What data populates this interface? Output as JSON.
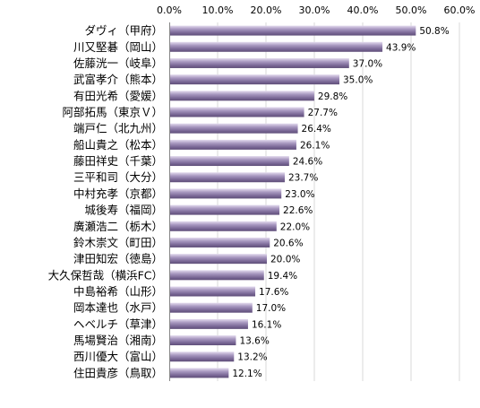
{
  "chart_data": {
    "type": "bar",
    "orientation": "horizontal",
    "title": "",
    "xlabel": "",
    "ylabel": "",
    "xlim": [
      0,
      60
    ],
    "x_ticks": [
      "0.0%",
      "10.0%",
      "20.0%",
      "30.0%",
      "40.0%",
      "50.0%",
      "60.0%"
    ],
    "x_axis_position": "top",
    "grid": true,
    "legend": "none",
    "bar_color": "#8e7fa8",
    "categories": [
      "ダヴィ（甲府）",
      "川又堅碁（岡山）",
      "佐藤洸一（岐阜）",
      "武富孝介（熊本）",
      "有田光希（愛媛）",
      "阿部拓馬（東京Ｖ）",
      "端戸仁（北九州）",
      "船山貴之（松本）",
      "藤田祥史（千葉）",
      "三平和司（大分）",
      "中村充孝（京都）",
      "城後寿（福岡）",
      "廣瀬浩二（栃木）",
      "鈴木崇文（町田）",
      "津田知宏（徳島）",
      "大久保哲哉（横浜FC）",
      "中島裕希（山形）",
      "岡本達也（水戸）",
      "ヘベルチ（草津）",
      "馬場賢治（湘南）",
      "西川優大（富山）",
      "住田貴彦（鳥取）"
    ],
    "values": [
      50.8,
      43.9,
      37.0,
      35.0,
      29.8,
      27.7,
      26.4,
      26.1,
      24.6,
      23.7,
      23.0,
      22.6,
      22.0,
      20.6,
      20.0,
      19.4,
      17.6,
      17.0,
      16.1,
      13.6,
      13.2,
      12.1
    ],
    "value_labels": [
      "50.8%",
      "43.9%",
      "37.0%",
      "35.0%",
      "29.8%",
      "27.7%",
      "26.4%",
      "26.1%",
      "24.6%",
      "23.7%",
      "23.0%",
      "22.6%",
      "22.0%",
      "20.6%",
      "20.0%",
      "19.4%",
      "17.6%",
      "17.0%",
      "16.1%",
      "13.6%",
      "13.2%",
      "12.1%"
    ]
  }
}
